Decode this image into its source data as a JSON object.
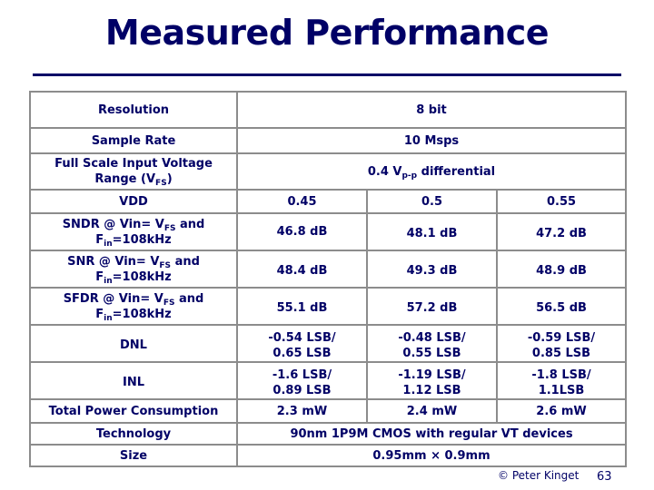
{
  "slide": {
    "title": "Measured Performance",
    "footer": "© Peter Kinget",
    "page_number": "63"
  },
  "table": {
    "resolution": {
      "label": "Resolution",
      "value": "8 bit"
    },
    "sample_rate": {
      "label": "Sample Rate",
      "value": "10 Msps"
    },
    "full_scale": {
      "label_part1": "Full Scale Input Voltage",
      "label_part2": "Range (V",
      "label_sub": "FS",
      "label_part3": ")",
      "value_part1": "0.4 V",
      "value_sub": "p-p",
      "value_part2": " differential"
    },
    "vdd": {
      "label": "VDD",
      "values": [
        "0.45",
        "0.5",
        "0.55"
      ]
    },
    "sndr": {
      "label_a": "SNDR @ Vin= V",
      "label_sub1": "FS",
      "label_b": " and",
      "label_c": "F",
      "label_sub2": "in",
      "label_d": "=108kHz",
      "values": [
        "46.8 dB",
        "48.1 dB",
        "47.2 dB"
      ]
    },
    "snr": {
      "label_a": "SNR @ Vin= V",
      "label_sub1": "FS",
      "label_b": " and",
      "label_c": "F",
      "label_sub2": "in",
      "label_d": "=108kHz",
      "values": [
        "48.4 dB",
        "49.3 dB",
        "48.9 dB"
      ]
    },
    "sfdr": {
      "label_a": "SFDR @ Vin= V",
      "label_sub1": "FS",
      "label_b": " and",
      "label_c": "F",
      "label_sub2": "in",
      "label_d": "=108kHz",
      "values": [
        "55.1 dB",
        "57.2 dB",
        "56.5 dB"
      ]
    },
    "dnl": {
      "label": "DNL",
      "values": [
        [
          "-0.54 LSB/",
          "0.65 LSB"
        ],
        [
          "-0.48 LSB/",
          "0.55 LSB"
        ],
        [
          "-0.59 LSB/",
          "0.85 LSB"
        ]
      ]
    },
    "inl": {
      "label": "INL",
      "values": [
        [
          "-1.6 LSB/",
          "0.89 LSB"
        ],
        [
          "-1.19 LSB/",
          "1.12 LSB"
        ],
        [
          "-1.8 LSB/",
          "1.1LSB"
        ]
      ]
    },
    "power": {
      "label": "Total Power Consumption",
      "values": [
        "2.3 mW",
        "2.4 mW",
        "2.6 mW"
      ]
    },
    "technology": {
      "label": "Technology",
      "value": "90nm 1P9M CMOS with regular VT devices"
    },
    "size": {
      "label": "Size",
      "value": "0.95mm × 0.9mm"
    }
  }
}
